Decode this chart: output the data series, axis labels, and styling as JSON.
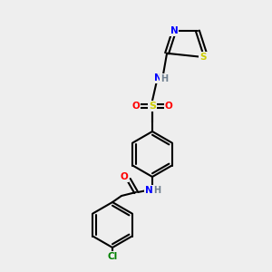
{
  "bg_color": "#eeeeee",
  "bond_color": "#000000",
  "bond_lw": 1.5,
  "colors": {
    "N": "#0000ff",
    "O": "#ff0000",
    "S_sulfonyl": "#cccc00",
    "S_thiazole": "#cccc00",
    "Cl": "#008000",
    "H": "#708090",
    "C": "#000000"
  },
  "font_size": 7.5,
  "font_size_small": 6.5
}
